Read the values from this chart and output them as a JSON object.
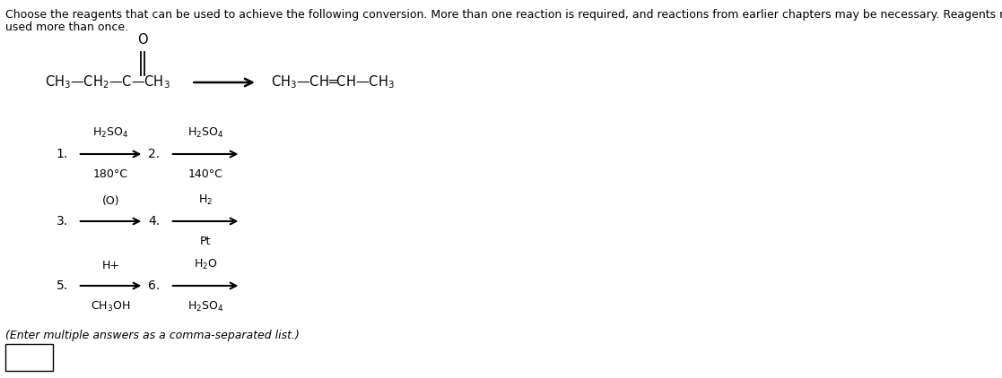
{
  "background_color": "#ffffff",
  "text_color": "#000000",
  "title_line1": "Choose the reagents that can be used to achieve the following conversion. More than one reaction is required, and reactions from earlier chapters may be necessary. Reagents may be",
  "title_line2": "used more than once.",
  "fs_title": 9.0,
  "fs_chem": 10.5,
  "fs_reagent": 9.0,
  "fs_label": 10.0,
  "enter_text": "(Enter multiple answers as a comma-separated list.)",
  "reagent1_top": "H$_2$SO$_4$",
  "reagent1_bot": "180°C",
  "reagent2_top": "H$_2$SO$_4$",
  "reagent2_bot": "140°C",
  "reagent3_top": "(O)",
  "reagent4_top": "H$_2$",
  "reagent4_bot": "Pt",
  "reagent5_top": "H+",
  "reagent5_bot": "CH$_3$OH",
  "reagent6_top": "H$_2$O",
  "reagent6_bot": "H$_2$SO$_4$"
}
